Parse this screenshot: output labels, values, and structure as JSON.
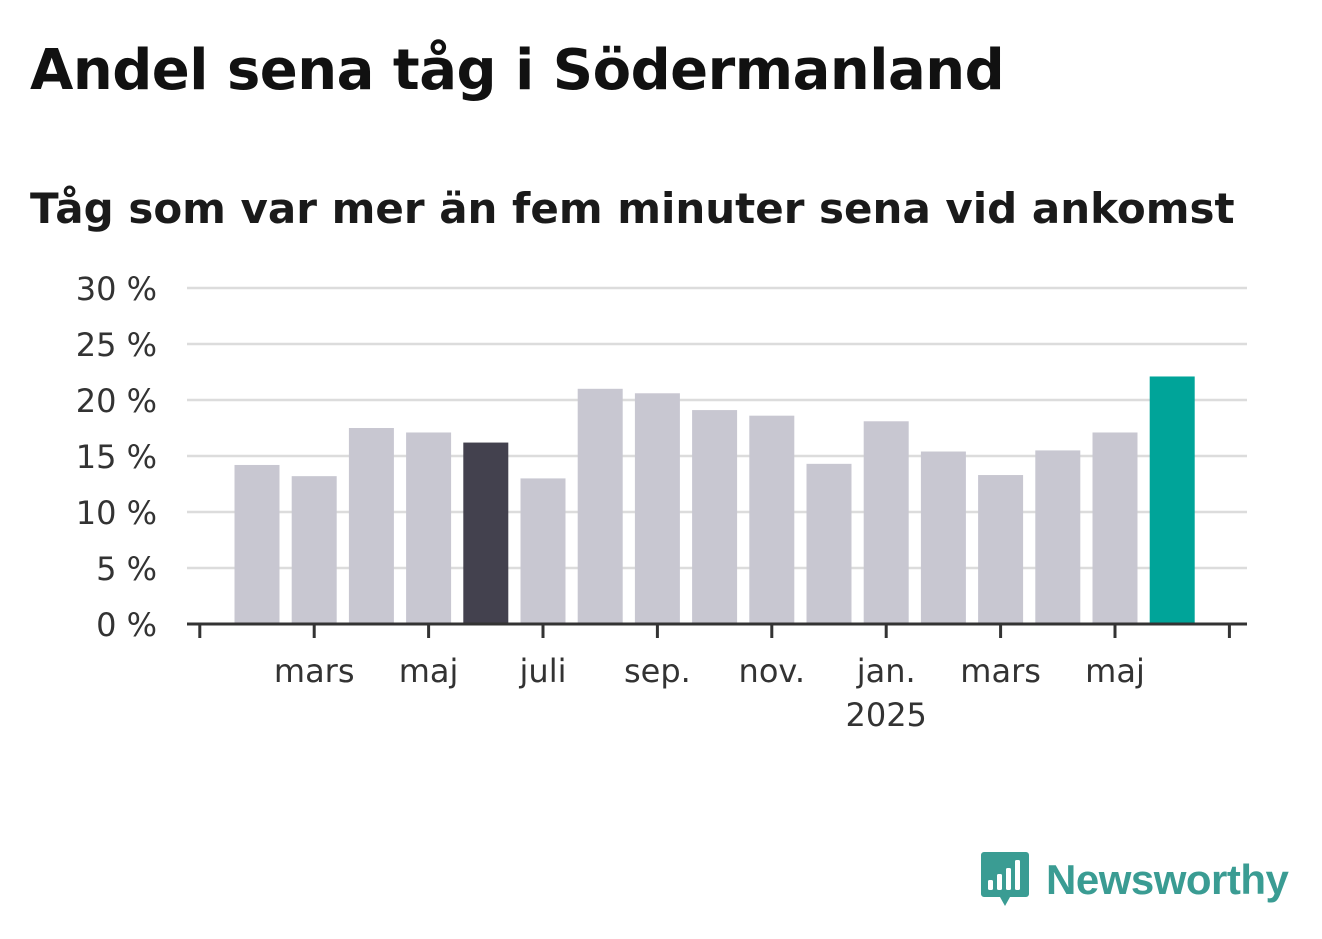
{
  "title": "Andel sena tåg i Södermanland",
  "subtitle": "Tåg som var mer än fem minuter sena vid ankomst",
  "brand": {
    "name": "Newsworthy",
    "color": "#3a9c93"
  },
  "colors": {
    "bar_default": "#c8c7d1",
    "bar_highlight": "#43414e",
    "bar_latest": "#00a499",
    "grid": "#dcdcdc",
    "axis": "#333333"
  },
  "chart_data": {
    "type": "bar",
    "unit": "%",
    "ylim": [
      0,
      30
    ],
    "yticks": [
      0,
      5,
      10,
      15,
      20,
      25,
      30
    ],
    "ytick_labels": [
      "0 %",
      "5 %",
      "10 %",
      "15 %",
      "20 %",
      "25 %",
      "30 %"
    ],
    "grid": true,
    "categories": [
      "2024-02",
      "2024-03",
      "2024-04",
      "2024-05",
      "2024-06",
      "2024-07",
      "2024-08",
      "2024-09",
      "2024-10",
      "2024-11",
      "2024-12",
      "2025-01",
      "2025-02",
      "2025-03",
      "2025-04",
      "2025-05",
      "2025-06"
    ],
    "values": [
      14.2,
      13.2,
      17.5,
      17.1,
      16.2,
      13.0,
      21.0,
      20.6,
      19.1,
      18.6,
      14.3,
      18.1,
      15.4,
      13.3,
      15.5,
      17.1,
      22.1
    ],
    "highlight_index": 4,
    "latest_index": 16,
    "xtick_labels": [
      {
        "label": "mars",
        "sublabel": "",
        "month": "2024-03"
      },
      {
        "label": "maj",
        "sublabel": "",
        "month": "2024-05"
      },
      {
        "label": "juli",
        "sublabel": "",
        "month": "2024-07"
      },
      {
        "label": "sep.",
        "sublabel": "",
        "month": "2024-09"
      },
      {
        "label": "nov.",
        "sublabel": "",
        "month": "2024-11"
      },
      {
        "label": "jan.",
        "sublabel": "2025",
        "month": "2025-01"
      },
      {
        "label": "mars",
        "sublabel": "",
        "month": "2025-03"
      },
      {
        "label": "maj",
        "sublabel": "",
        "month": "2025-05"
      }
    ]
  }
}
